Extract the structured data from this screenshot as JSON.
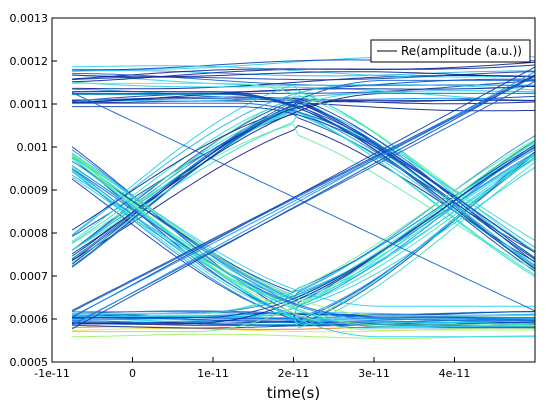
{
  "chart_data": {
    "type": "line",
    "title": "",
    "xlabel": "time(s)",
    "ylabel": "",
    "xlim": [
      -1e-11,
      5e-11
    ],
    "ylim": [
      0.0005,
      0.0013
    ],
    "grid": false,
    "legend": {
      "placement": "top-right",
      "entries": [
        "Re(amplitude (a.u.))"
      ]
    },
    "x_ticks": [
      {
        "value": -1e-11,
        "label": "-1e-11"
      },
      {
        "value": 0,
        "label": "0"
      },
      {
        "value": 1e-11,
        "label": "1e-11"
      },
      {
        "value": 2e-11,
        "label": "2e-11"
      },
      {
        "value": 3e-11,
        "label": "3e-11"
      },
      {
        "value": 4e-11,
        "label": "4e-11"
      }
    ],
    "y_ticks": [
      {
        "value": 0.0005,
        "label": "0.0005"
      },
      {
        "value": 0.0006,
        "label": "0.0006"
      },
      {
        "value": 0.0007,
        "label": "0.0007"
      },
      {
        "value": 0.0008,
        "label": "0.0008"
      },
      {
        "value": 0.0009,
        "label": "0.0009"
      },
      {
        "value": 0.001,
        "label": "0.001"
      },
      {
        "value": 0.0011,
        "label": "0.0011"
      },
      {
        "value": 0.0012,
        "label": "0.0012"
      },
      {
        "value": 0.0013,
        "label": "0.0013"
      }
    ],
    "eye": {
      "x_start": -7.5e-12,
      "x_end": 5e-11,
      "crossings": [
        -7.5e-12,
        0,
        4e-11
      ],
      "bit_period": 4e-11,
      "low_level": 0.0006,
      "high_level": 0.00115,
      "crossing_level": 0.00086
    },
    "colors": [
      "#0a1f8f",
      "#0b3fb0",
      "#1060d0",
      "#1890e6",
      "#20b0ee",
      "#22d0e8",
      "#30e0d0",
      "#60f0a0",
      "#a0f060",
      "#f0e040",
      "#f07020",
      "#d02010"
    ]
  }
}
